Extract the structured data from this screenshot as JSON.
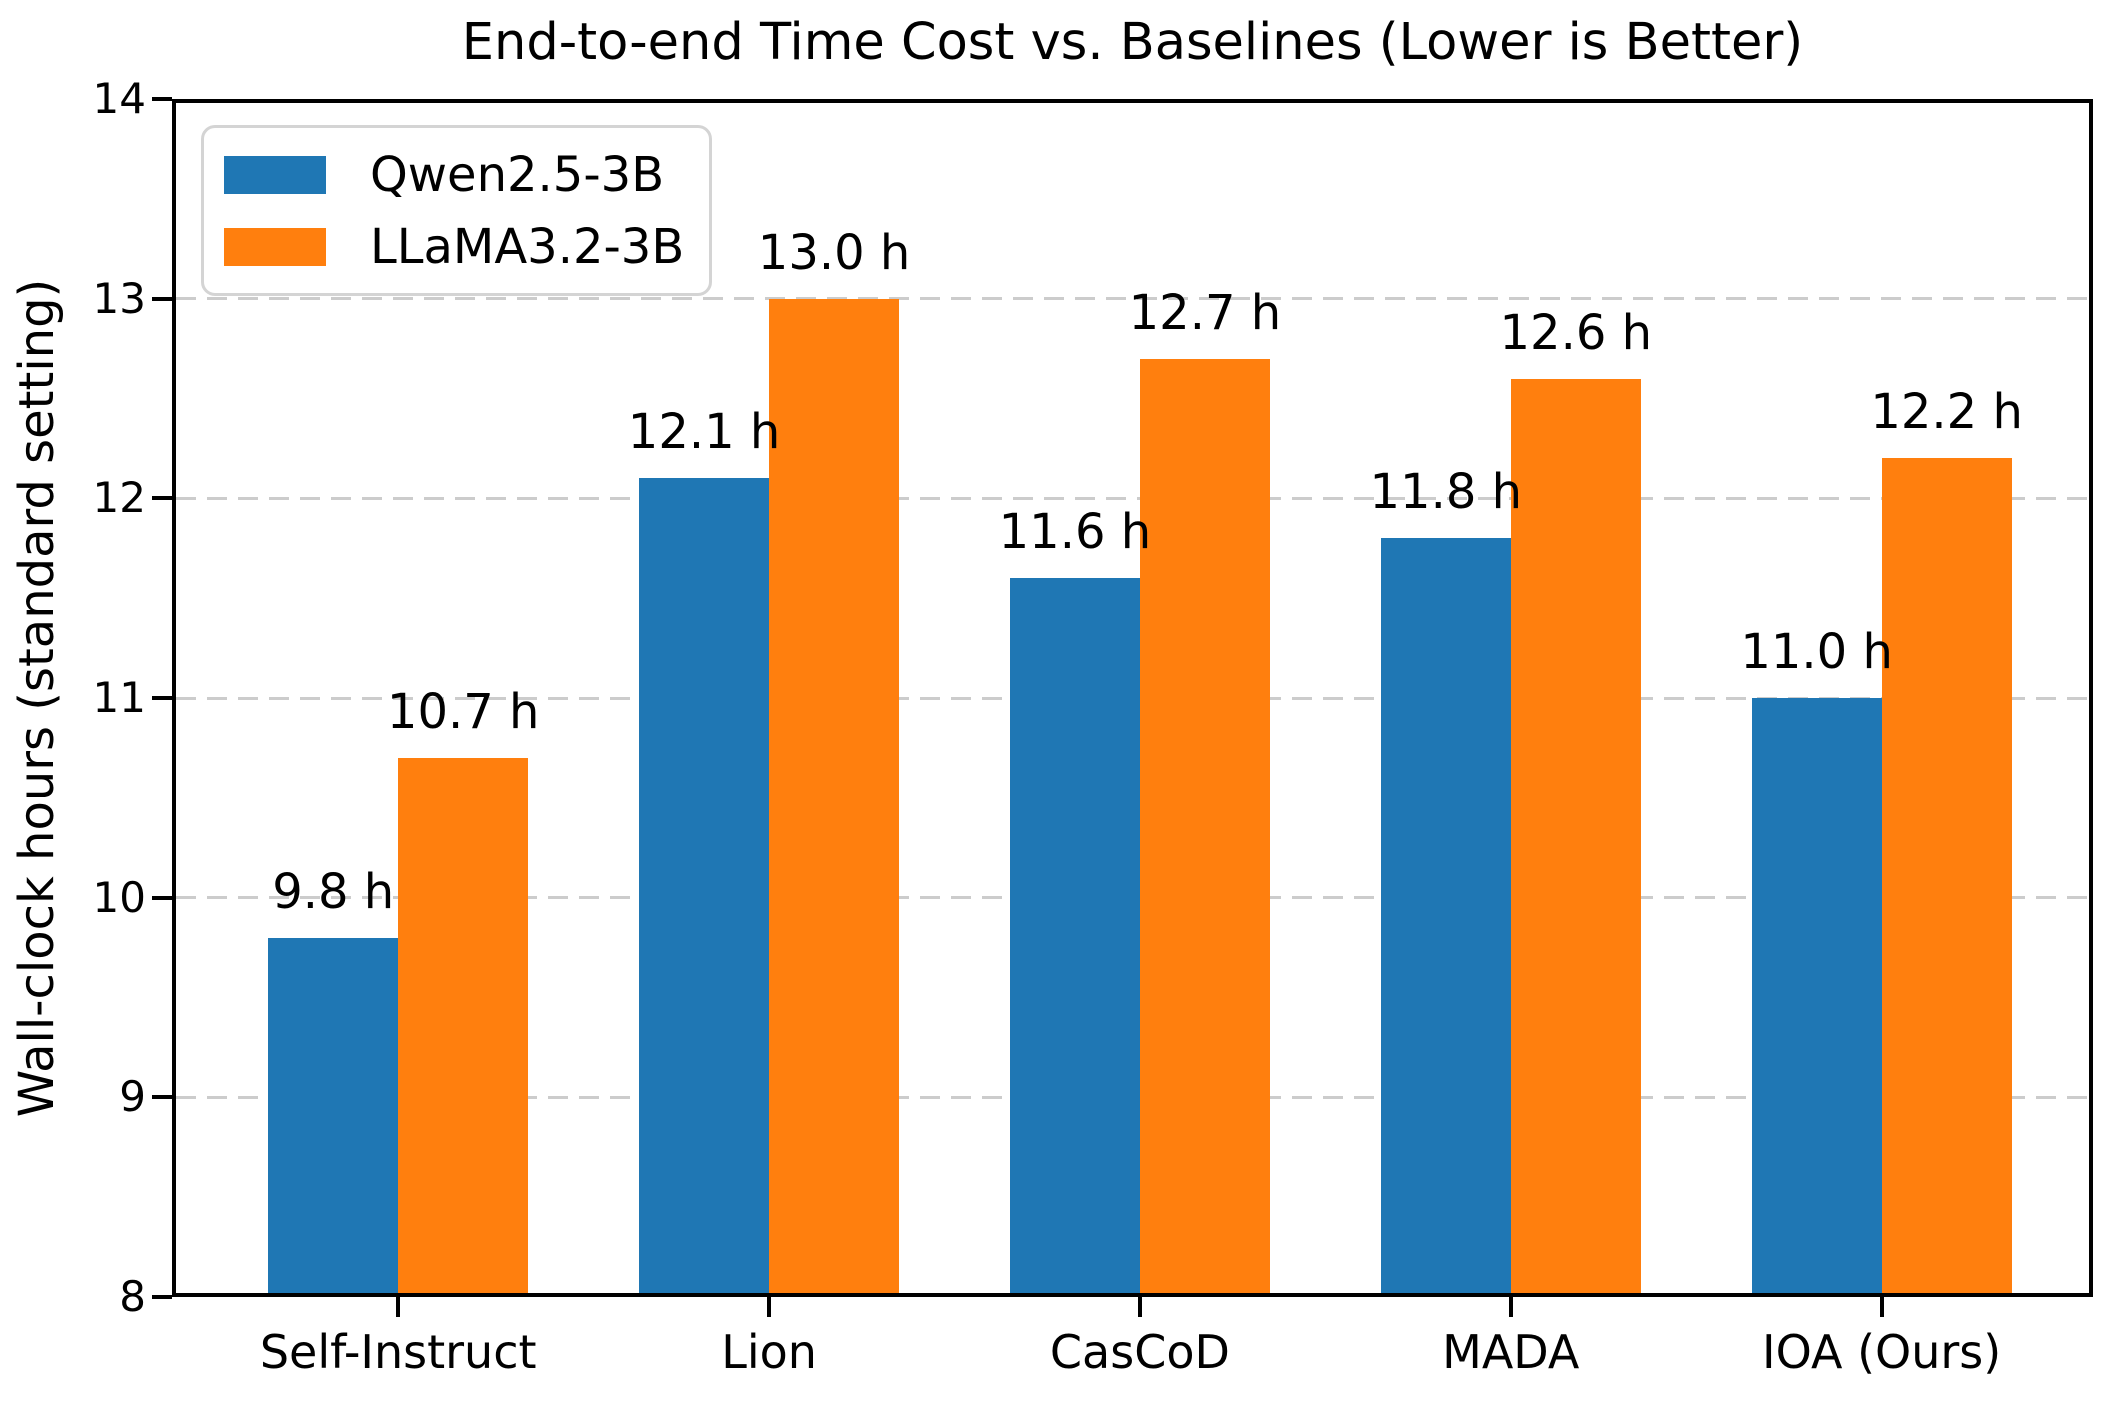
{
  "chart_data": {
    "type": "bar",
    "title": "End-to-end Time Cost vs. Baselines (Lower is Better)",
    "ylabel": "Wall-clock hours (standard setting)",
    "xlabel": "",
    "categories": [
      "Self-Instruct",
      "Lion",
      "CasCoD",
      "MADA",
      "IOA (Ours)"
    ],
    "series": [
      {
        "name": "Qwen2.5-3B",
        "color": "#1f77b4",
        "values": [
          9.8,
          12.1,
          11.6,
          11.8,
          11.0
        ],
        "value_labels": [
          "9.8 h",
          "12.1 h",
          "11.6 h",
          "11.8 h",
          "11.0 h"
        ]
      },
      {
        "name": "LLaMA3.2-3B",
        "color": "#ff7f0e",
        "values": [
          10.7,
          13.0,
          12.7,
          12.6,
          12.2
        ],
        "value_labels": [
          "10.7 h",
          "13.0 h",
          "12.7 h",
          "12.6 h",
          "12.2 h"
        ]
      }
    ],
    "ylim": [
      8,
      14
    ],
    "yticks": [
      8,
      9,
      10,
      11,
      12,
      13,
      14
    ],
    "ytick_labels": [
      "8",
      "9",
      "10",
      "11",
      "12",
      "13",
      "14"
    ],
    "grid": "horizontal-dashed",
    "legend_position": "upper-left"
  },
  "colors": {
    "grid": "#cccccc",
    "spine": "#000000",
    "legend_border": "#d4d4d4",
    "text": "#000000"
  }
}
